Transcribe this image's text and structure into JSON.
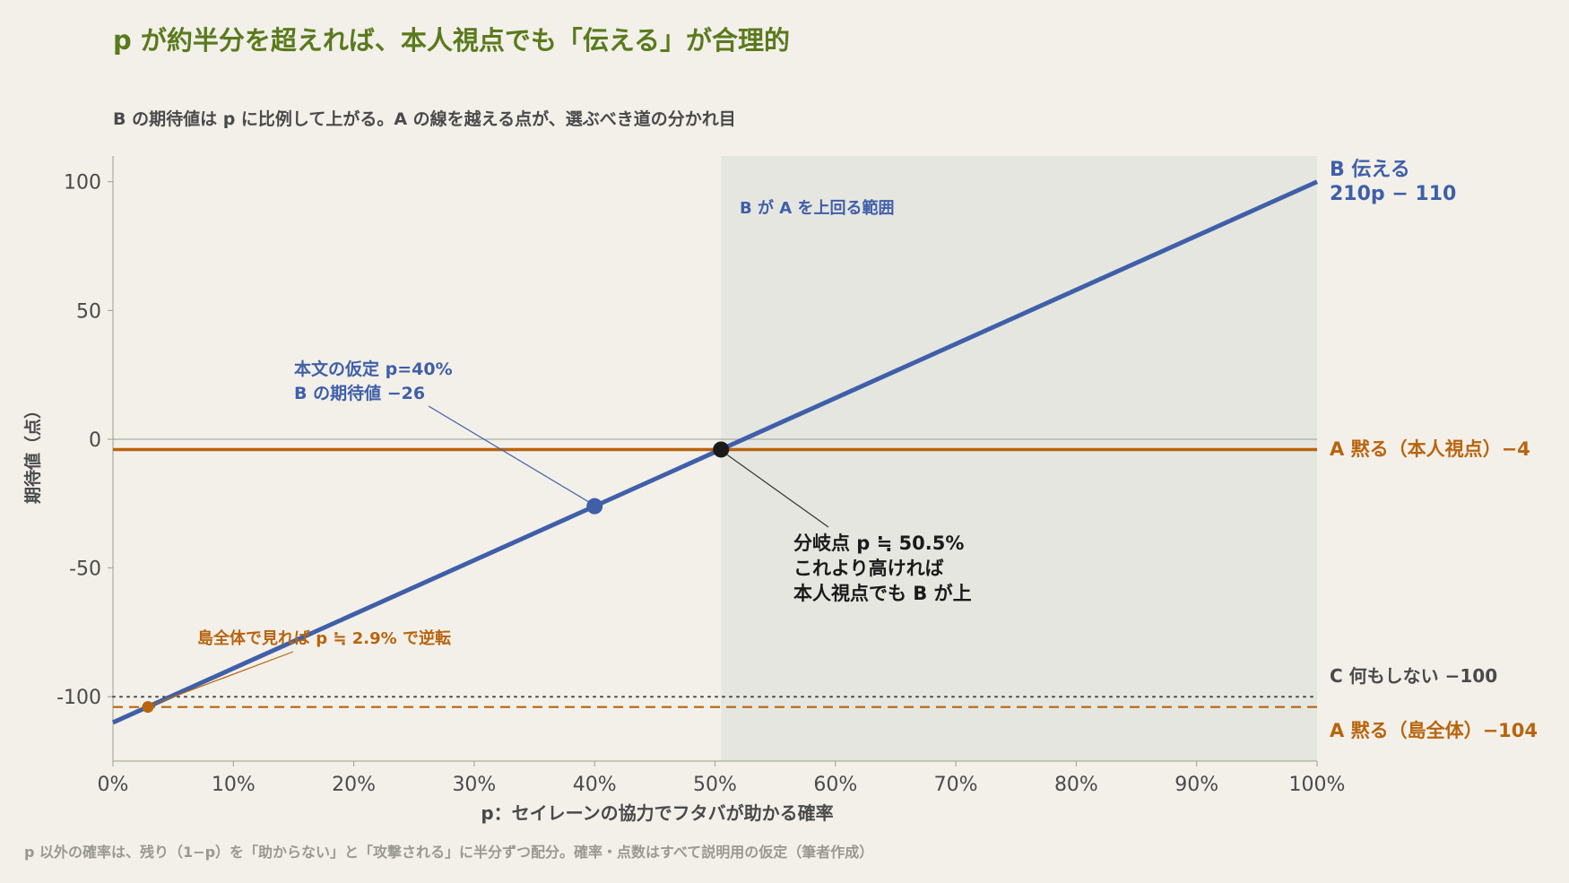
{
  "title": "p が約半分を超えれば、本人視点でも「伝える」が合理的",
  "subtitle": "B の期待値は p に比例して上がる。A の線を越える点が、選ぶべき道の分かれ目",
  "footnote": "p 以外の確率は、残り（1−p）を「助からない」と「攻撃される」に半分ずつ配分。確率・点数はすべて説明用の仮定（筆者作成）",
  "colors": {
    "B": "#3f5fa8",
    "A": "#b8640e",
    "C": "#4a4a4a",
    "region": "#e6e6e1",
    "breakpoint": "#1a1a1a",
    "axis": "#9aa08a"
  },
  "chart_data": {
    "type": "line",
    "xlabel": "p：セイレーンの協力でフタバが助かる確率",
    "ylabel": "期待値（点）",
    "xlim": [
      0,
      1
    ],
    "ylim": [
      -125,
      110
    ],
    "x_ticks": [
      0,
      0.1,
      0.2,
      0.3,
      0.4,
      0.5,
      0.6,
      0.7,
      0.8,
      0.9,
      1.0
    ],
    "x_tick_labels": [
      "0%",
      "10%",
      "20%",
      "30%",
      "40%",
      "50%",
      "60%",
      "70%",
      "80%",
      "90%",
      "100%"
    ],
    "y_ticks": [
      100,
      50,
      0,
      -50,
      -100
    ],
    "y_tick_labels": [
      "100",
      "50",
      "0",
      "-50",
      "-100"
    ],
    "series": [
      {
        "key": "B",
        "label_line1": "B 伝える",
        "label_line2": "210p − 110",
        "style": "solid",
        "slope": 210,
        "intercept": -110
      },
      {
        "key": "A",
        "label": "A 黙る（本人視点）−4",
        "style": "solid",
        "value": -4
      },
      {
        "key": "C",
        "label": "C 何もしない −100",
        "style": "dotted",
        "value": -100
      },
      {
        "key": "A2",
        "label": "A 黙る（島全体）−104",
        "style": "dashed",
        "value": -104
      }
    ],
    "region": {
      "x_from": 0.505,
      "x_to": 1.0,
      "label": "B が A を上回る範囲"
    },
    "points": [
      {
        "key": "assumption",
        "x": 0.4,
        "y": -26
      },
      {
        "key": "breakpoint",
        "x": 0.505,
        "y": -4
      },
      {
        "key": "island",
        "x": 0.029,
        "y": -104
      }
    ],
    "annotations": {
      "assumption": {
        "line1": "本文の仮定 p=40%",
        "line2": "B の期待値 −26"
      },
      "breakpoint": {
        "line1": "分岐点 p ≒ 50.5%",
        "line2": "これより高ければ",
        "line3": "本人視点でも B が上"
      },
      "island": {
        "text": "島全体で見れば p ≒ 2.9% で逆転"
      }
    }
  }
}
